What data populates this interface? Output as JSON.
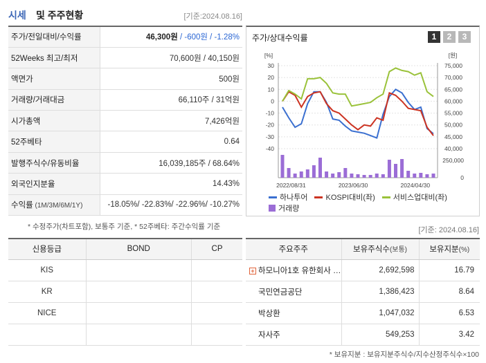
{
  "header": {
    "title_main": "시세",
    "title_sub": "및 주주현황",
    "date": "[기준:2024.08.16]"
  },
  "quote_rows": [
    {
      "label": "주가/전일대비/수익률",
      "value_main": "46,300원",
      "value_change": " / -600원 / -1.28%"
    },
    {
      "label": "52Weeks 최고/최저",
      "value": "70,600원 / 40,150원"
    },
    {
      "label": "액면가",
      "value": "500원"
    },
    {
      "label": "거래량/거래대금",
      "value": "66,110주 / 31억원"
    },
    {
      "label": "시가총액",
      "value": "7,426억원"
    },
    {
      "label": "52주베타",
      "value": "0.64"
    },
    {
      "label": "발행주식수/유동비율",
      "value": "16,039,185주 / 68.64%"
    },
    {
      "label": "외국인지분율",
      "value": "14.43%"
    },
    {
      "label": "수익률",
      "label_small": " (1M/3M/6M/1Y)",
      "value": "-18.05%/ -22.83%/ -22.96%/ -10.27%"
    }
  ],
  "quote_note": "* 수정주가(차트포함), 보통주 기준, * 52주베타: 주간수익률 기준",
  "chart": {
    "title": "주가/상대수익률",
    "buttons": [
      "1",
      "2",
      "3"
    ],
    "left_unit": "[%]",
    "right_unit": "[원]",
    "legend": {
      "hana": "하나투어",
      "kospi": "KOSPI대비(좌)",
      "service": "서비스업대비(좌)",
      "volume": "거래량"
    },
    "colors": {
      "hana": "#3a6fd0",
      "kospi": "#cc3322",
      "service": "#9ac23a",
      "volume": "#9b6dd6"
    }
  },
  "chart_data": {
    "type": "line",
    "title": "주가/상대수익률",
    "x_ticks": [
      "2022/08/31",
      "2023/06/30",
      "2024/04/30"
    ],
    "y_left_ticks": [
      "30",
      "20",
      "10",
      "0",
      "-10",
      "-20",
      "-30",
      "-40"
    ],
    "y_left_range": [
      -40,
      30
    ],
    "y_right_ticks": [
      "75,000",
      "70,000",
      "65,000",
      "60,000",
      "55,000",
      "50,000",
      "45,000",
      "40,000"
    ],
    "y_right_range": [
      40000,
      75000
    ],
    "volume_ticks": [
      "250,000",
      "0"
    ],
    "volume_range": [
      0,
      400000
    ],
    "series": [
      {
        "name": "하나투어",
        "axis": "right",
        "values": [
          57500,
          53000,
          49000,
          50500,
          59000,
          64000,
          64000,
          59500,
          52500,
          52000,
          49500,
          47500,
          47000,
          46500,
          45500,
          44500,
          54500,
          62000,
          65000,
          63500,
          59500,
          56500,
          57500,
          48500,
          46300
        ]
      },
      {
        "name": "KOSPI대비(좌)",
        "axis": "left",
        "values": [
          0,
          8,
          5,
          -5,
          4,
          7,
          8,
          -2,
          -8,
          -10,
          -15,
          -20,
          -24,
          -20,
          -21,
          -14,
          -16,
          7,
          5,
          0,
          -6,
          -7,
          -8,
          -22,
          -29
        ]
      },
      {
        "name": "서비스업대비(좌)",
        "axis": "left",
        "values": [
          0,
          9,
          6,
          2,
          19,
          19,
          20,
          15,
          7,
          6,
          6,
          -4,
          -3,
          -2,
          -1,
          3,
          6,
          25,
          28,
          26,
          25,
          22,
          24,
          8,
          4
        ]
      },
      {
        "name": "거래량",
        "axis": "volume",
        "values": [
          330000,
          140000,
          60000,
          90000,
          120000,
          180000,
          290000,
          90000,
          60000,
          80000,
          140000,
          60000,
          50000,
          40000,
          40000,
          60000,
          50000,
          260000,
          200000,
          270000,
          100000,
          60000,
          70000,
          50000,
          60000
        ]
      }
    ]
  },
  "right_date": "[기준: 2024.08.16]",
  "credit": {
    "headers": [
      "신용등급",
      "BOND",
      "CP"
    ],
    "rows": [
      {
        "agency": "KIS",
        "bond": "",
        "cp": ""
      },
      {
        "agency": "KR",
        "bond": "",
        "cp": ""
      },
      {
        "agency": "NICE",
        "bond": "",
        "cp": ""
      },
      {
        "agency": "",
        "bond": "",
        "cp": ""
      }
    ]
  },
  "holders": {
    "headers": {
      "name": "주요주주",
      "shares": "보유주식수",
      "shares_unit": "(보통)",
      "ratio": "보유지분",
      "ratio_unit": "(%)"
    },
    "rows": [
      {
        "name": "하모니아1호 유한회사 …",
        "shares": "2,692,598",
        "ratio": "16.79"
      },
      {
        "name": "국민연금공단",
        "shares": "1,386,423",
        "ratio": "8.64"
      },
      {
        "name": "박상환",
        "shares": "1,047,032",
        "ratio": "6.53"
      },
      {
        "name": "자사주",
        "shares": "549,253",
        "ratio": "3.42"
      }
    ],
    "note": "* 보유지분 : 보유지분주식수/지수산정주식수×100"
  }
}
